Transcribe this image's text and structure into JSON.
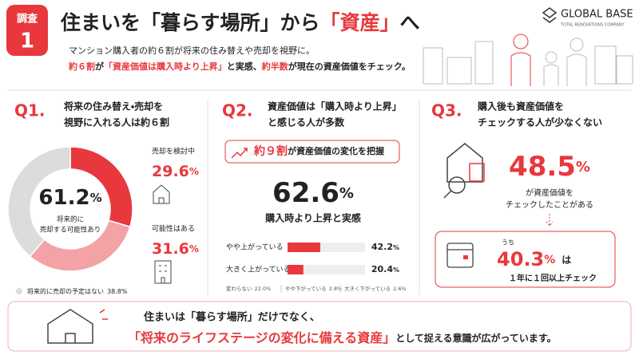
{
  "badge": {
    "label": "調査",
    "number": "1"
  },
  "unit": "%",
  "header": {
    "title": [
      "住まいを「暮らす場所」から",
      "「資産」",
      "へ"
    ],
    "lead1": "マンション購入者の約６割が将来の住み替えや売却を視野に。",
    "lead2": [
      "約６割",
      "が",
      "「資産価値は購入時より上昇」",
      "と実感、",
      "約半数",
      "が現在の資産価値をチェック。"
    ]
  },
  "logo": {
    "name": "GLOBAL BASE",
    "tagline": "TOTAL RENOVATIONS COMPANY"
  },
  "q1": {
    "label": "Q1.",
    "question": [
      "将来の住み替え・売却を",
      "視野に入れる人は約６割"
    ],
    "center_value": "61.2",
    "center_label": [
      "将来的に",
      "売却する可能性あり"
    ],
    "segments": [
      {
        "name": "売却を検討中",
        "value": 29.6,
        "color": "#e8383d"
      },
      {
        "name": "可能性はある",
        "value": 31.6,
        "color": "#f3a3a5"
      },
      {
        "name": "将来的に売却の予定はない",
        "value": 38.8,
        "value_label": "38.8%",
        "color": "#dcdcdc"
      }
    ]
  },
  "q2": {
    "label": "Q2.",
    "question": [
      "資産価値は「購入時より上昇」",
      "と感じる人が多数"
    ],
    "pill": [
      "約９割",
      "が資産価値の変化を把握"
    ],
    "big_value": "62.6",
    "big_label": "購入時より上昇と実感",
    "xlim": [
      0,
      100
    ],
    "bars": [
      {
        "name": "やや上がっている",
        "value": 42.2,
        "color": "#e8383d"
      },
      {
        "name": "大きく上がっている",
        "value": 20.4,
        "color": "#e8383d"
      }
    ],
    "others": [
      {
        "name": "変わらない",
        "value_label": "22.0%"
      },
      {
        "name": "やや下がっている",
        "value_label": "2.8%"
      },
      {
        "name": "大きく下がっている",
        "value_label": "2.6%"
      }
    ]
  },
  "q3": {
    "label": "Q3.",
    "question": [
      "購入後も資産価値を",
      "チェックする人が少なくない"
    ],
    "big_value": "48.5",
    "big_label": [
      "が資産価値を",
      "チェックしたことがある"
    ],
    "sub_prefix": "うち",
    "sub_value": "40.3",
    "sub_suffix": "は",
    "sub_label": "１年に１回以上チェック"
  },
  "footer": {
    "line1": "住まいは「暮らす場所」だけでなく、",
    "line2": [
      "「将来のライフステージの変化に備える資産」",
      "として捉える意識が広がっています。"
    ]
  }
}
